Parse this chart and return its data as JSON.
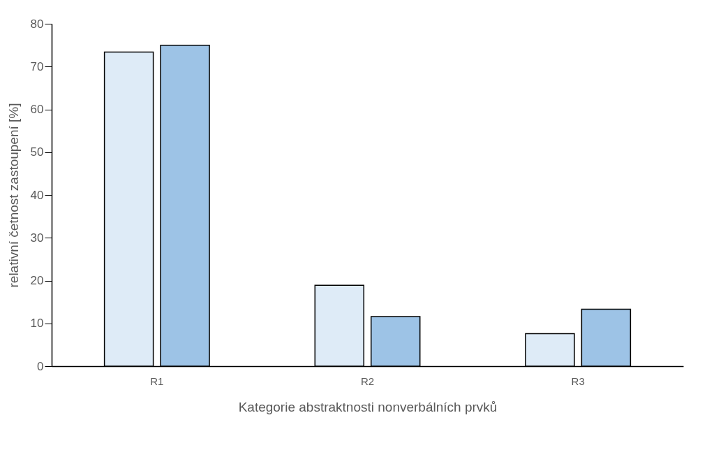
{
  "chart_data": {
    "type": "bar",
    "xlabel": "Kategorie abstraktnosti nonverbálních prvků",
    "ylabel": "relativní četnost zastoupení [%]",
    "categories": [
      "R1",
      "R2",
      "R3"
    ],
    "ylim": [
      0,
      80
    ],
    "yticks": [
      0,
      10,
      20,
      30,
      40,
      50,
      60,
      70,
      80
    ],
    "grid": false,
    "legend": false,
    "series": [
      {
        "color": "#deebf7",
        "values": [
          73.4,
          18.9,
          7.6
        ]
      },
      {
        "color": "#9dc3e6",
        "values": [
          75.0,
          11.6,
          13.3
        ]
      }
    ]
  }
}
